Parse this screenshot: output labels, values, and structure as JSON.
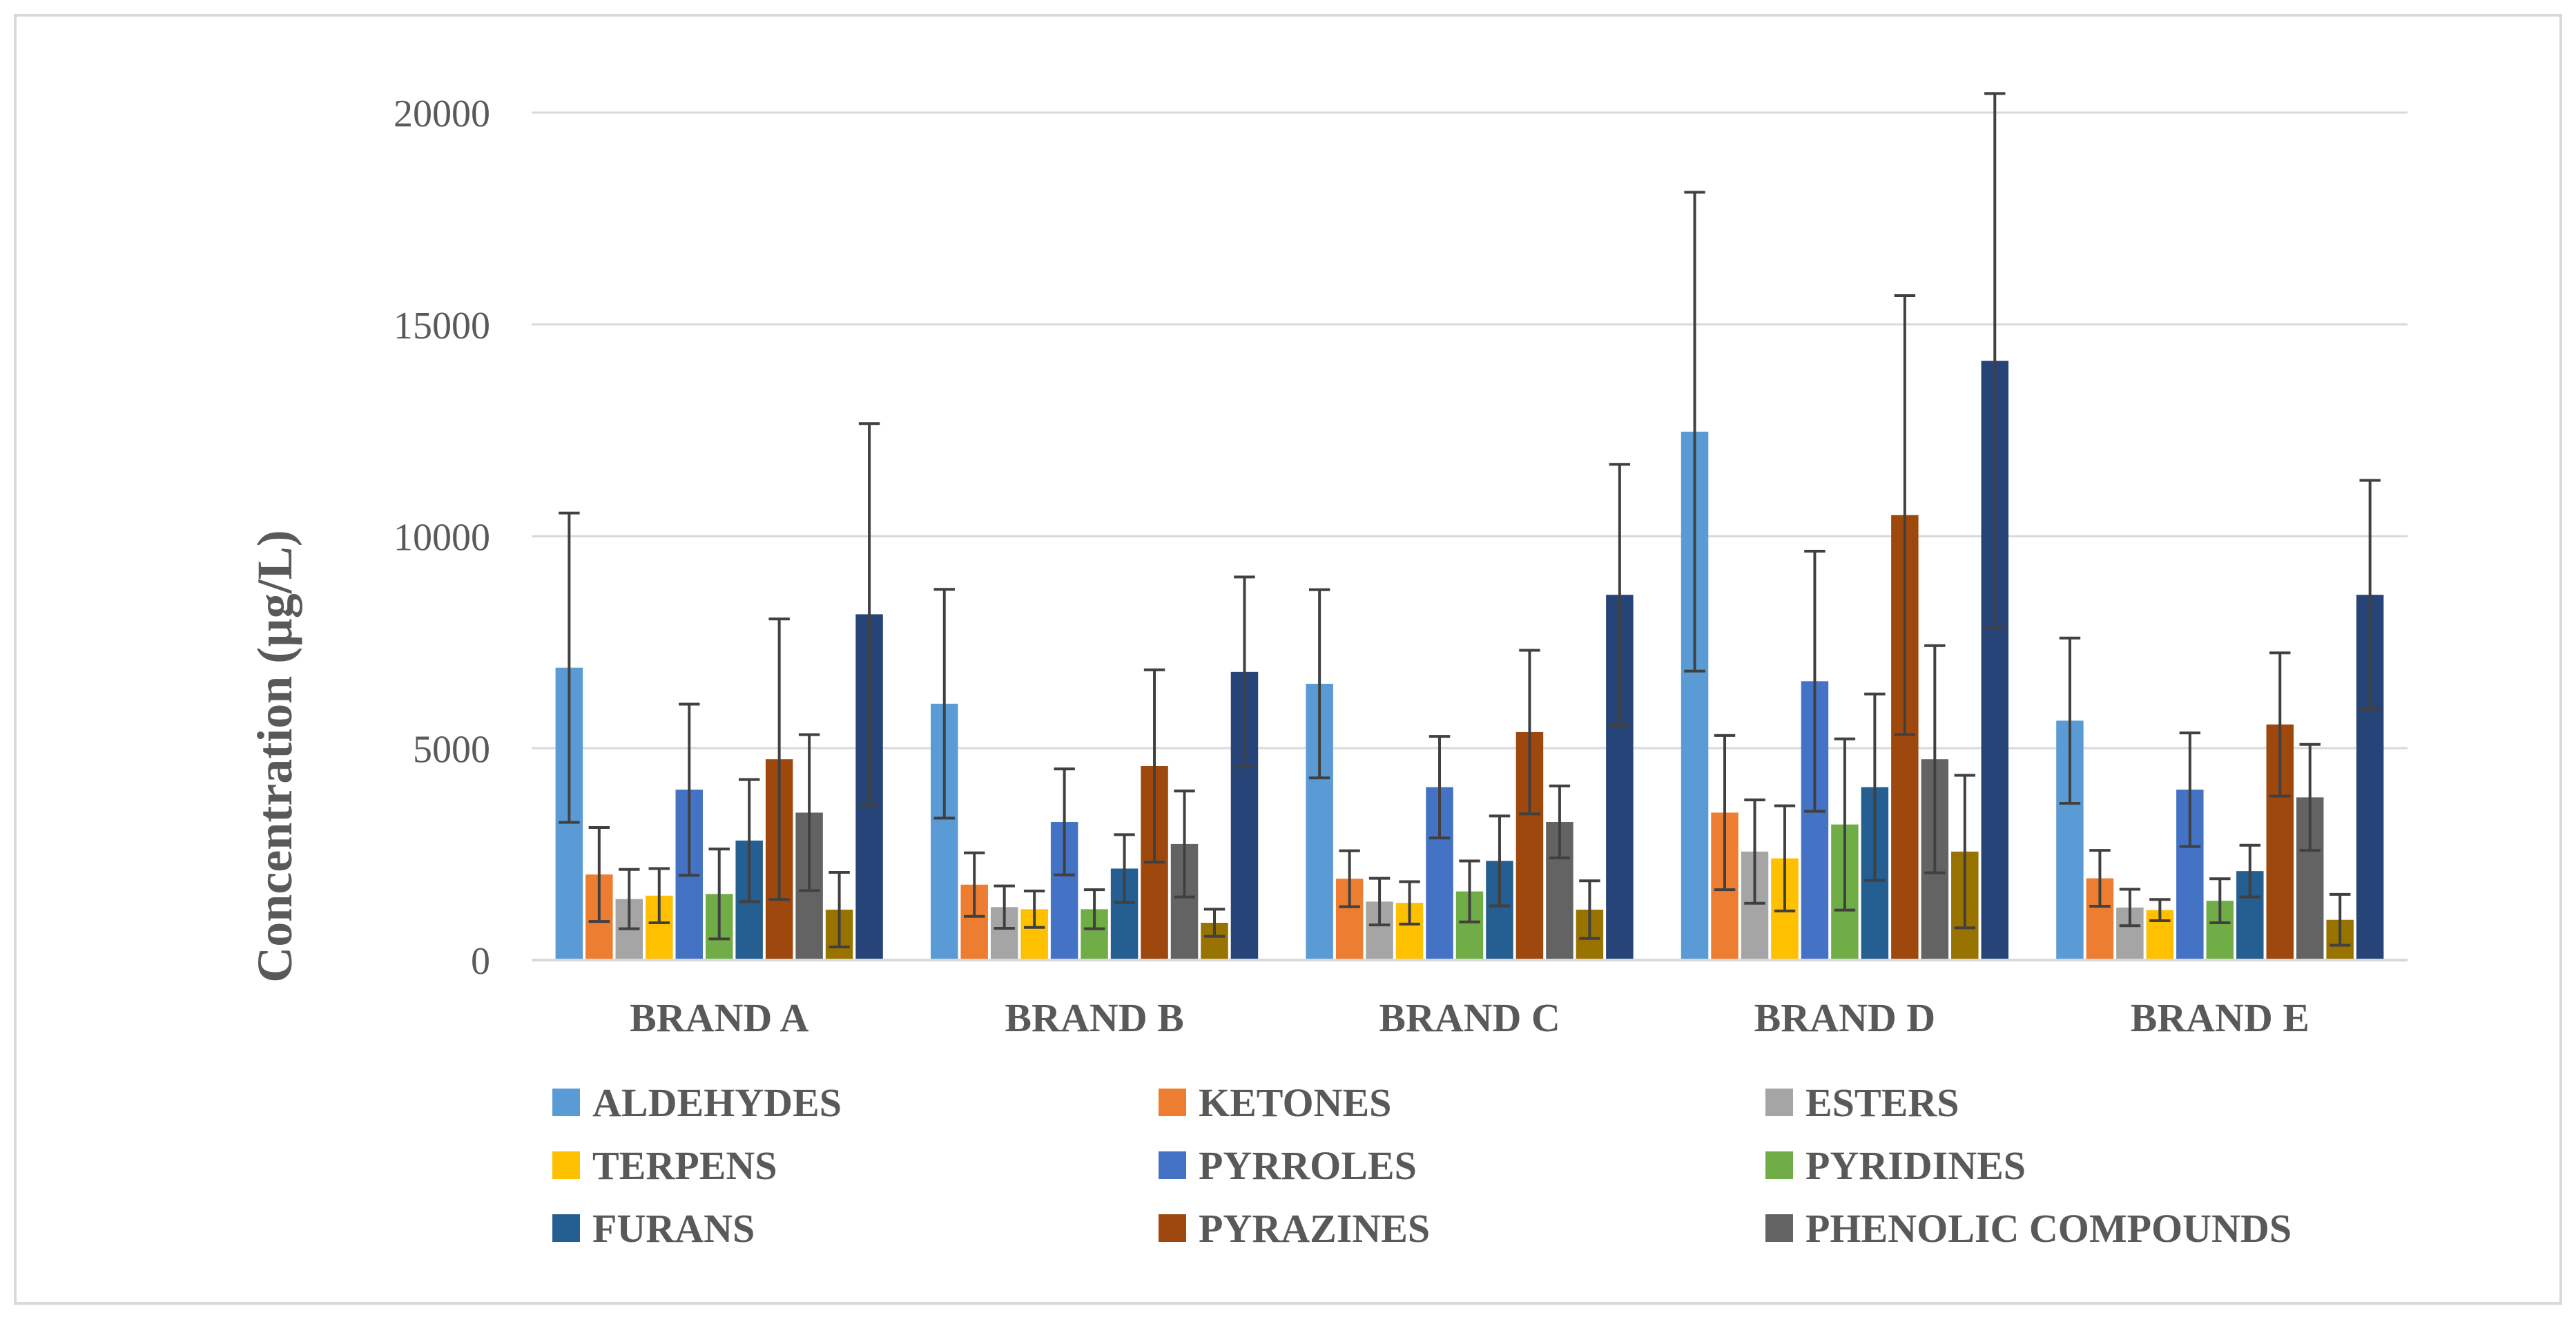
{
  "chart_data": {
    "type": "bar",
    "title": "",
    "xlabel": "",
    "ylabel": "Concentration (µg/L)",
    "ylim": [
      0,
      20000
    ],
    "yticks": [
      0,
      5000,
      10000,
      15000,
      20000
    ],
    "grid": true,
    "legend_position": "bottom",
    "categories": [
      "BRAND A",
      "BRAND B",
      "BRAND C",
      "BRAND D",
      "BRAND E"
    ],
    "series": [
      {
        "name": "ALDEHYDES",
        "color": "#5B9BD5",
        "values": [
          6900,
          6050,
          6520,
          12470,
          5650
        ],
        "errors": [
          3650,
          2700,
          2220,
          5650,
          1950
        ]
      },
      {
        "name": "KETONES",
        "color": "#ED7D31",
        "values": [
          2020,
          1780,
          1920,
          3480,
          1930
        ],
        "errors": [
          1110,
          750,
          660,
          1820,
          660
        ]
      },
      {
        "name": "ESTERS",
        "color": "#A5A5A5",
        "values": [
          1440,
          1250,
          1380,
          2560,
          1240
        ],
        "errors": [
          700,
          500,
          550,
          1220,
          430
        ]
      },
      {
        "name": "TERPENS",
        "color": "#FFC000",
        "values": [
          1520,
          1200,
          1350,
          2400,
          1180
        ],
        "errors": [
          640,
          430,
          500,
          1240,
          250
        ]
      },
      {
        "name": "PYRROLES",
        "color": "#4472C4",
        "values": [
          4020,
          3260,
          4080,
          6580,
          4020
        ],
        "errors": [
          2020,
          1250,
          1200,
          3070,
          1340
        ]
      },
      {
        "name": "PYRIDINES",
        "color": "#70AD47",
        "values": [
          1560,
          1200,
          1620,
          3200,
          1400
        ],
        "errors": [
          1060,
          460,
          720,
          2020,
          520
        ]
      },
      {
        "name": "FURANS",
        "color": "#255E91",
        "values": [
          2820,
          2160,
          2340,
          4080,
          2100
        ],
        "errors": [
          1440,
          800,
          1060,
          2200,
          610
        ]
      },
      {
        "name": "PYRAZINES",
        "color": "#9E480E",
        "values": [
          4740,
          4580,
          5380,
          10500,
          5560
        ],
        "errors": [
          3310,
          2270,
          1930,
          5180,
          1690
        ]
      },
      {
        "name": "PHENOLIC COMPOUNDS",
        "color": "#636363",
        "values": [
          3480,
          2740,
          3260,
          4740,
          3840
        ],
        "errors": [
          1840,
          1250,
          850,
          2680,
          1250
        ]
      },
      {
        "name": "",
        "color": "#997300",
        "values": [
          1190,
          880,
          1190,
          2560,
          950
        ],
        "errors": [
          880,
          320,
          680,
          1800,
          600
        ]
      },
      {
        "name": "",
        "color": "#264478",
        "values": [
          8160,
          6800,
          8620,
          14140,
          8620
        ],
        "errors": [
          4500,
          2240,
          3080,
          6310,
          2700
        ]
      }
    ]
  }
}
